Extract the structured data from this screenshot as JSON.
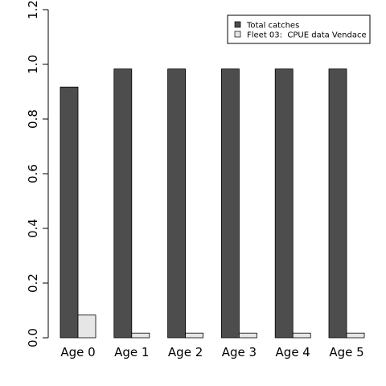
{
  "chart_data": {
    "type": "bar",
    "categories": [
      "Age 0",
      "Age 1",
      "Age 2",
      "Age 3",
      "Age 4",
      "Age 5"
    ],
    "series": [
      {
        "name": "Total catches",
        "color": "#4d4d4d",
        "values": [
          0.917,
          0.983,
          0.983,
          0.983,
          0.983,
          0.983
        ]
      },
      {
        "name": "Fleet 03:  CPUE data Vendace",
        "color": "#e6e6e6",
        "values": [
          0.083,
          0.017,
          0.017,
          0.017,
          0.017,
          0.017
        ]
      }
    ],
    "ylim": [
      0,
      1.2
    ],
    "yticks": [
      "0.0",
      "0.2",
      "0.4",
      "0.6",
      "0.8",
      "1.0",
      "1.2"
    ],
    "legend_position": "top-right",
    "grid": false
  }
}
